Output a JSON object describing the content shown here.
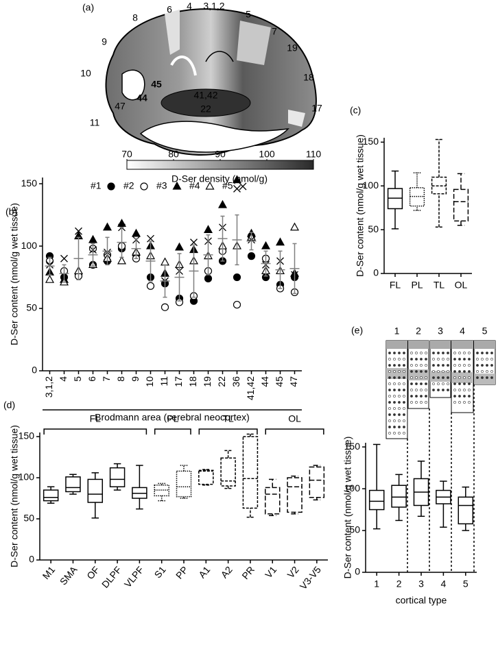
{
  "brain_map": {
    "panel": "(a)",
    "area_labels": [
      "8",
      "6",
      "4",
      "3,1,2",
      "5",
      "9",
      "7",
      "19",
      "10",
      "45",
      "44",
      "41,42",
      "22",
      "18",
      "47",
      "11",
      "17"
    ],
    "colorbar": {
      "label": "D-Ser density (nmol/g)",
      "xlim": [
        70,
        110
      ],
      "xticks": [
        70,
        80,
        90,
        100,
        110
      ],
      "colors": [
        "#ffffff",
        "#2a2a2a"
      ]
    }
  },
  "chart_data": [
    {
      "type": "scatter",
      "panel": "(b)",
      "ylabel": "D-Ser content (nmol/g wet tissue)",
      "xlabel": "Brodmann area (cerebral neocortex)",
      "categories": [
        "3,1,2",
        "4",
        "5",
        "6",
        "7",
        "8",
        "9",
        "10",
        "11",
        "17",
        "18",
        "19",
        "22",
        "36",
        "41,42",
        "44",
        "45",
        "47"
      ],
      "series": [
        {
          "name": "#1",
          "marker": "circle-filled",
          "color": "#000000",
          "values": [
            92,
            75,
            77,
            85,
            88,
            98,
            93,
            75,
            70,
            58,
            56,
            74,
            88,
            75,
            92,
            75,
            69,
            75
          ]
        },
        {
          "name": "#2",
          "marker": "circle-open",
          "color": "#000000",
          "values": [
            88,
            80,
            76,
            98,
            93,
            100,
            90,
            68,
            51,
            55,
            60,
            80,
            96,
            53,
            108,
            90,
            66,
            63
          ]
        },
        {
          "name": "#3",
          "marker": "triangle-filled",
          "color": "#000000",
          "values": [
            79,
            73,
            108,
            105,
            115,
            118,
            110,
            100,
            78,
            99,
            97,
            113,
            133,
            153,
            110,
            100,
            103,
            78
          ]
        },
        {
          "name": "#4",
          "marker": "triangle-open",
          "color": "#000000",
          "values": [
            73,
            71,
            80,
            85,
            90,
            88,
            95,
            92,
            87,
            85,
            88,
            92,
            100,
            100,
            107,
            80,
            80,
            115
          ]
        },
        {
          "name": "#5",
          "marker": "x",
          "color": "#000000",
          "values": [
            85,
            90,
            112,
            97,
            95,
            115,
            105,
            106,
            72,
            80,
            103,
            104,
            115,
            146,
            105,
            85,
            88,
            77
          ]
        }
      ],
      "mean": [
        84,
        78,
        90,
        93,
        96,
        103,
        98,
        88,
        72,
        75,
        80,
        93,
        106,
        105,
        104,
        86,
        81,
        82
      ],
      "sd": [
        7,
        7,
        17,
        9,
        11,
        12,
        8,
        16,
        13,
        19,
        21,
        16,
        18,
        20,
        7,
        10,
        15,
        20
      ],
      "mean_color": "#7f7f7f",
      "ylim": [
        0,
        155
      ],
      "yticks": [
        0,
        50,
        100,
        150
      ]
    },
    {
      "type": "box",
      "panel": "(c)",
      "ylabel": "D-Ser content (nmol/g wet tissue)",
      "categories": [
        "FL",
        "PL",
        "TL",
        "OL"
      ],
      "styles": [
        "solid",
        "dotted",
        "dashed",
        "longdash"
      ],
      "values": [
        {
          "min": 51,
          "q1": 74,
          "median": 86,
          "q3": 97,
          "max": 117
        },
        {
          "min": 72,
          "q1": 77,
          "median": 88,
          "q3": 98,
          "max": 115
        },
        {
          "min": 53,
          "q1": 91,
          "median": 100,
          "q3": 110,
          "max": 153
        },
        {
          "min": 55,
          "q1": 60,
          "median": 82,
          "q3": 96,
          "max": 114
        }
      ],
      "ylim": [
        0,
        155
      ],
      "yticks": [
        0,
        50,
        100,
        150
      ]
    },
    {
      "type": "box",
      "panel": "(d)",
      "ylabel": "D-Ser content (nmol/g wet tissue)",
      "groups": [
        {
          "label": "FL",
          "style": "solid",
          "categories": [
            "M1",
            "SMA",
            "OF",
            "DLPF",
            "VLPF"
          ],
          "values": [
            {
              "min": 69,
              "q1": 72,
              "median": 76,
              "q3": 85,
              "max": 89
            },
            {
              "min": 80,
              "q1": 83,
              "median": 88,
              "q3": 101,
              "max": 104
            },
            {
              "min": 51,
              "q1": 70,
              "median": 80,
              "q3": 98,
              "max": 106
            },
            {
              "min": 85,
              "q1": 89,
              "median": 98,
              "q3": 112,
              "max": 117
            },
            {
              "min": 62,
              "q1": 75,
              "median": 81,
              "q3": 88,
              "max": 115
            }
          ]
        },
        {
          "label": "PL",
          "style": "dotted",
          "categories": [
            "S1",
            "PP"
          ],
          "values": [
            {
              "min": 72,
              "q1": 78,
              "median": 85,
              "q3": 91,
              "max": 93
            },
            {
              "min": 75,
              "q1": 77,
              "median": 89,
              "q3": 108,
              "max": 115
            }
          ]
        },
        {
          "label": "TL",
          "style": "dashed",
          "categories": [
            "A1",
            "A2",
            "PR"
          ],
          "values": [
            {
              "min": 91,
              "q1": 92,
              "median": 108,
              "q3": 109,
              "max": 110
            },
            {
              "min": 87,
              "q1": 90,
              "median": 96,
              "q3": 124,
              "max": 133
            },
            {
              "min": 52,
              "q1": 63,
              "median": 99,
              "q3": 150,
              "max": 153
            }
          ]
        },
        {
          "label": "OL",
          "style": "longdash",
          "categories": [
            "V1",
            "V2",
            "V3-V5"
          ],
          "values": [
            {
              "min": 54,
              "q1": 56,
              "median": 80,
              "q3": 88,
              "max": 98
            },
            {
              "min": 56,
              "q1": 58,
              "median": 89,
              "q3": 100,
              "max": 102
            },
            {
              "min": 73,
              "q1": 76,
              "median": 97,
              "q3": 113,
              "max": 115
            }
          ]
        }
      ],
      "ylim": [
        0,
        155
      ],
      "yticks": [
        0,
        50,
        100,
        150
      ]
    },
    {
      "type": "box",
      "panel": "(e)",
      "ylabel": "D-Ser content (nmol/g wet tissue)",
      "xlabel": "cortical type",
      "schematic_labels": [
        "1",
        "2",
        "3",
        "4",
        "5"
      ],
      "categories": [
        "1",
        "2",
        "3",
        "4",
        "5"
      ],
      "styles": [
        "solid",
        "solid",
        "solid",
        "solid",
        "solid"
      ],
      "values": [
        {
          "min": 52,
          "q1": 75,
          "median": 85,
          "q3": 98,
          "max": 153
        },
        {
          "min": 62,
          "q1": 78,
          "median": 90,
          "q3": 104,
          "max": 117
        },
        {
          "min": 67,
          "q1": 80,
          "median": 96,
          "q3": 112,
          "max": 133
        },
        {
          "min": 54,
          "q1": 82,
          "median": 90,
          "q3": 98,
          "max": 109
        },
        {
          "min": 50,
          "q1": 58,
          "median": 80,
          "q3": 90,
          "max": 102
        }
      ],
      "ylim": [
        0,
        155
      ],
      "yticks": [
        0,
        50,
        100,
        150
      ]
    }
  ]
}
